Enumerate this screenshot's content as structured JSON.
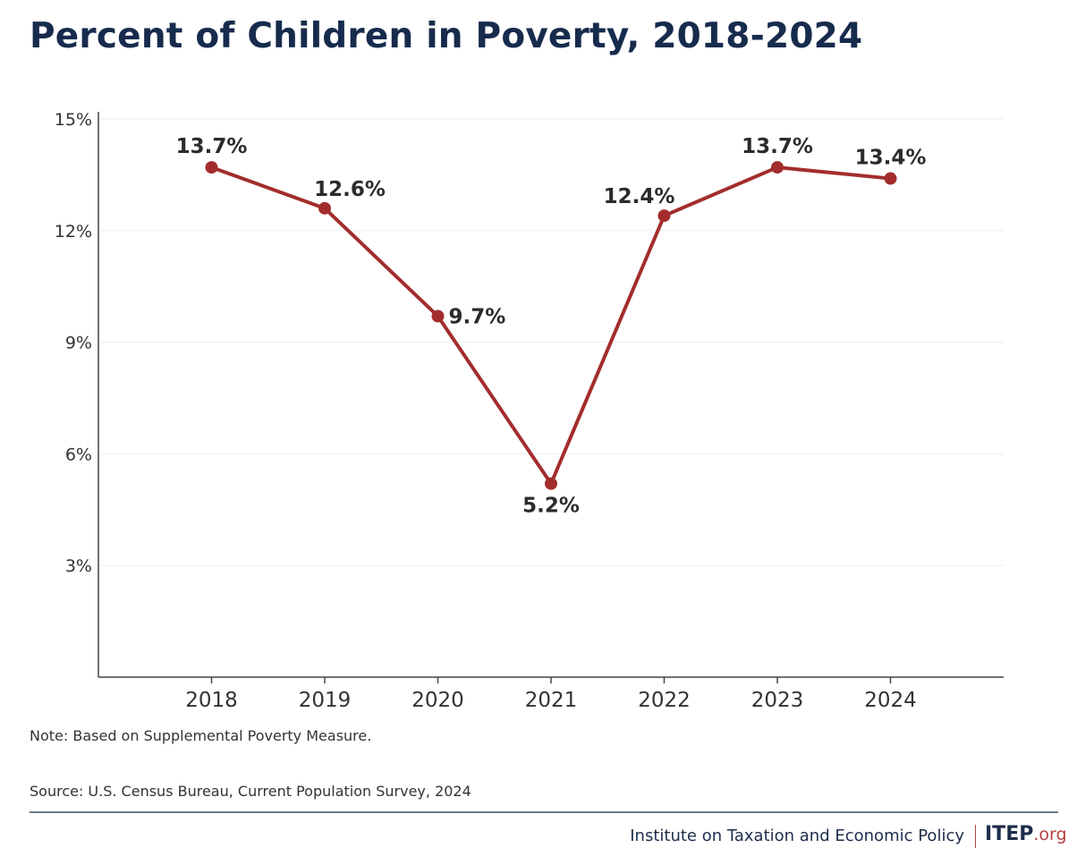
{
  "chart_data": {
    "type": "line",
    "title": "Percent of Children in Poverty, 2018-2024",
    "xlabel": "",
    "ylabel": "",
    "x": [
      "2018",
      "2019",
      "2020",
      "2021",
      "2022",
      "2023",
      "2024"
    ],
    "series": [
      {
        "name": "Percent of Children in Poverty",
        "values": [
          13.7,
          12.6,
          9.7,
          5.2,
          12.4,
          13.7,
          13.4
        ]
      }
    ],
    "data_labels": [
      "13.7%",
      "12.6%",
      "9.7%",
      "5.2%",
      "12.4%",
      "13.7%",
      "13.4%"
    ],
    "label_placement": [
      "above",
      "above-right",
      "right",
      "below",
      "above-left",
      "above",
      "above"
    ],
    "yticks": [
      3,
      6,
      9,
      12,
      15
    ],
    "ytick_labels": [
      "3%",
      "6%",
      "9%",
      "12%",
      "15%"
    ],
    "ylim": [
      0,
      15
    ],
    "grid": true,
    "legend": "none",
    "line_color": "#a32d2d"
  },
  "notes": {
    "note": "Note: Based on Supplemental Poverty Measure.",
    "source": "Source: U.S. Census Bureau, Current Population Survey, 2024"
  },
  "footer": {
    "org": "Institute on Taxation and Economic Policy",
    "logo_main": "ITEP",
    "logo_suffix": ".org"
  }
}
